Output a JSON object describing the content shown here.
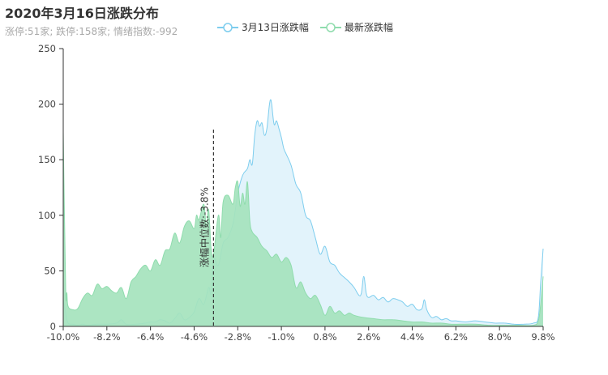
{
  "chart_data": {
    "type": "area",
    "title": "2020年3月16日涨跌分布",
    "subtitle": "涨停:51家; 跌停:158家; 情绪指数:-992",
    "xlabel": "",
    "ylabel": "",
    "x_tick_labels": [
      "-10.0%",
      "-8.2%",
      "-6.4%",
      "-4.6%",
      "-2.8%",
      "-1.0%",
      "0.8%",
      "2.6%",
      "4.4%",
      "6.2%",
      "8.0%",
      "9.8%"
    ],
    "xlim": [
      -10.0,
      9.8
    ],
    "ylim": [
      0,
      250
    ],
    "y_ticks": [
      0,
      50,
      100,
      150,
      200,
      250
    ],
    "grid": false,
    "legend_position": "top-center",
    "median_line": {
      "x": -3.8,
      "label": "涨幅中位数:-3.8%"
    },
    "series": [
      {
        "name": "3月13日涨跌幅",
        "color": "#7dcdee",
        "fill": "#dff2fb",
        "points": [
          [
            -10.0,
            25
          ],
          [
            -9.9,
            12
          ],
          [
            -9.8,
            3
          ],
          [
            -9.6,
            2
          ],
          [
            -9.4,
            1
          ],
          [
            -9.2,
            2
          ],
          [
            -9.0,
            1
          ],
          [
            -8.6,
            2
          ],
          [
            -8.2,
            2
          ],
          [
            -7.8,
            3
          ],
          [
            -7.6,
            6
          ],
          [
            -7.4,
            2
          ],
          [
            -7.0,
            2
          ],
          [
            -6.6,
            3
          ],
          [
            -6.4,
            4
          ],
          [
            -6.2,
            4
          ],
          [
            -6.0,
            6
          ],
          [
            -5.8,
            5
          ],
          [
            -5.6,
            3
          ],
          [
            -5.4,
            7
          ],
          [
            -5.2,
            12
          ],
          [
            -5.0,
            6
          ],
          [
            -4.8,
            8
          ],
          [
            -4.6,
            13
          ],
          [
            -4.4,
            25
          ],
          [
            -4.2,
            20
          ],
          [
            -4.0,
            35
          ],
          [
            -3.9,
            30
          ],
          [
            -3.8,
            60
          ],
          [
            -3.6,
            55
          ],
          [
            -3.4,
            75
          ],
          [
            -3.2,
            80
          ],
          [
            -3.0,
            92
          ],
          [
            -2.9,
            105
          ],
          [
            -2.8,
            120
          ],
          [
            -2.6,
            136
          ],
          [
            -2.4,
            142
          ],
          [
            -2.3,
            150
          ],
          [
            -2.2,
            146
          ],
          [
            -2.1,
            172
          ],
          [
            -2.0,
            185
          ],
          [
            -1.9,
            180
          ],
          [
            -1.8,
            183
          ],
          [
            -1.7,
            172
          ],
          [
            -1.6,
            178
          ],
          [
            -1.5,
            198
          ],
          [
            -1.45,
            204
          ],
          [
            -1.4,
            200
          ],
          [
            -1.3,
            182
          ],
          [
            -1.2,
            185
          ],
          [
            -1.1,
            178
          ],
          [
            -1.0,
            170
          ],
          [
            -0.9,
            160
          ],
          [
            -0.8,
            155
          ],
          [
            -0.6,
            145
          ],
          [
            -0.4,
            128
          ],
          [
            -0.2,
            120
          ],
          [
            0.0,
            100
          ],
          [
            0.2,
            95
          ],
          [
            0.4,
            80
          ],
          [
            0.6,
            65
          ],
          [
            0.8,
            72
          ],
          [
            1.0,
            58
          ],
          [
            1.2,
            55
          ],
          [
            1.4,
            48
          ],
          [
            1.6,
            44
          ],
          [
            1.8,
            40
          ],
          [
            2.0,
            35
          ],
          [
            2.2,
            28
          ],
          [
            2.3,
            30
          ],
          [
            2.4,
            45
          ],
          [
            2.5,
            30
          ],
          [
            2.6,
            26
          ],
          [
            2.8,
            28
          ],
          [
            3.0,
            24
          ],
          [
            3.2,
            26
          ],
          [
            3.4,
            22
          ],
          [
            3.6,
            25
          ],
          [
            3.8,
            24
          ],
          [
            4.0,
            22
          ],
          [
            4.2,
            18
          ],
          [
            4.4,
            20
          ],
          [
            4.6,
            15
          ],
          [
            4.8,
            16
          ],
          [
            4.9,
            24
          ],
          [
            5.0,
            15
          ],
          [
            5.2,
            8
          ],
          [
            5.4,
            9
          ],
          [
            5.6,
            6
          ],
          [
            5.8,
            7
          ],
          [
            6.0,
            5
          ],
          [
            6.2,
            5
          ],
          [
            6.6,
            4
          ],
          [
            7.0,
            5
          ],
          [
            7.4,
            4
          ],
          [
            7.8,
            3
          ],
          [
            8.2,
            3
          ],
          [
            8.6,
            2
          ],
          [
            9.0,
            2
          ],
          [
            9.4,
            3
          ],
          [
            9.6,
            8
          ],
          [
            9.7,
            40
          ],
          [
            9.8,
            70
          ]
        ]
      },
      {
        "name": "最新涨跌幅",
        "color": "#8fdcad",
        "fill": "#a5e3bd",
        "points": [
          [
            -10.0,
            175
          ],
          [
            -9.9,
            35
          ],
          [
            -9.85,
            30
          ],
          [
            -9.8,
            18
          ],
          [
            -9.6,
            15
          ],
          [
            -9.4,
            16
          ],
          [
            -9.2,
            25
          ],
          [
            -9.0,
            30
          ],
          [
            -8.8,
            28
          ],
          [
            -8.6,
            38
          ],
          [
            -8.4,
            34
          ],
          [
            -8.2,
            36
          ],
          [
            -8.0,
            32
          ],
          [
            -7.8,
            30
          ],
          [
            -7.6,
            35
          ],
          [
            -7.4,
            25
          ],
          [
            -7.2,
            40
          ],
          [
            -7.0,
            45
          ],
          [
            -6.8,
            52
          ],
          [
            -6.6,
            55
          ],
          [
            -6.4,
            50
          ],
          [
            -6.2,
            60
          ],
          [
            -6.0,
            55
          ],
          [
            -5.8,
            68
          ],
          [
            -5.6,
            70
          ],
          [
            -5.4,
            84
          ],
          [
            -5.2,
            75
          ],
          [
            -5.0,
            90
          ],
          [
            -4.8,
            95
          ],
          [
            -4.6,
            88
          ],
          [
            -4.5,
            100
          ],
          [
            -4.4,
            96
          ],
          [
            -4.2,
            110
          ],
          [
            -4.1,
            90
          ],
          [
            -4.0,
            105
          ],
          [
            -3.9,
            70
          ],
          [
            -3.8,
            65
          ],
          [
            -3.6,
            100
          ],
          [
            -3.5,
            80
          ],
          [
            -3.4,
            112
          ],
          [
            -3.2,
            118
          ],
          [
            -3.0,
            110
          ],
          [
            -2.9,
            125
          ],
          [
            -2.8,
            130
          ],
          [
            -2.7,
            108
          ],
          [
            -2.6,
            120
          ],
          [
            -2.5,
            110
          ],
          [
            -2.4,
            130
          ],
          [
            -2.3,
            95
          ],
          [
            -2.2,
            85
          ],
          [
            -2.0,
            80
          ],
          [
            -1.8,
            72
          ],
          [
            -1.6,
            68
          ],
          [
            -1.4,
            62
          ],
          [
            -1.2,
            65
          ],
          [
            -1.0,
            58
          ],
          [
            -0.8,
            62
          ],
          [
            -0.6,
            55
          ],
          [
            -0.4,
            35
          ],
          [
            -0.2,
            40
          ],
          [
            0.0,
            30
          ],
          [
            0.2,
            25
          ],
          [
            0.4,
            28
          ],
          [
            0.6,
            20
          ],
          [
            0.8,
            10
          ],
          [
            1.0,
            18
          ],
          [
            1.2,
            12
          ],
          [
            1.4,
            14
          ],
          [
            1.6,
            10
          ],
          [
            1.8,
            12
          ],
          [
            2.0,
            10
          ],
          [
            2.4,
            8
          ],
          [
            2.8,
            7
          ],
          [
            3.2,
            6
          ],
          [
            3.6,
            6
          ],
          [
            4.0,
            5
          ],
          [
            4.4,
            4
          ],
          [
            4.8,
            4
          ],
          [
            5.2,
            3
          ],
          [
            5.6,
            3
          ],
          [
            6.0,
            2
          ],
          [
            6.4,
            2
          ],
          [
            7.0,
            2
          ],
          [
            7.6,
            1
          ],
          [
            8.2,
            1
          ],
          [
            8.8,
            1
          ],
          [
            9.4,
            1
          ],
          [
            9.6,
            5
          ],
          [
            9.7,
            20
          ],
          [
            9.8,
            45
          ]
        ]
      }
    ]
  }
}
